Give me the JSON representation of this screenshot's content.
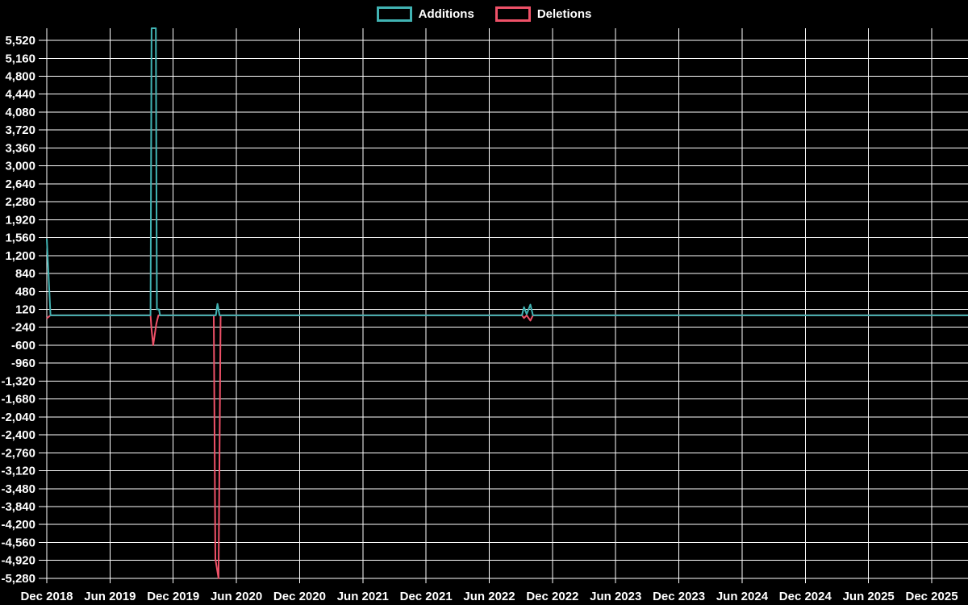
{
  "legend": {
    "items": [
      {
        "label": "Additions",
        "color": "#41b3b3"
      },
      {
        "label": "Deletions",
        "color": "#ef5168"
      }
    ]
  },
  "chart_data": {
    "type": "line",
    "title": "",
    "xlabel": "",
    "ylabel": "",
    "background": "#000000",
    "grid": true,
    "legend_position": "top-center",
    "x_axis": {
      "tick_labels": [
        "Dec 2018",
        "Jun 2019",
        "Dec 2019",
        "Jun 2020",
        "Dec 2020",
        "Jun 2021",
        "Dec 2021",
        "Jun 2022",
        "Dec 2022",
        "Jun 2023",
        "Dec 2023",
        "Jun 2024",
        "Dec 2024",
        "Jun 2025",
        "Dec 2025"
      ],
      "tick_month_offsets": [
        0,
        6,
        12,
        18,
        24,
        30,
        36,
        42,
        48,
        54,
        60,
        66,
        72,
        78,
        84
      ],
      "plot_end_month_offset": 87.5
    },
    "y_axis": {
      "tick_values": [
        5520,
        5160,
        4800,
        4440,
        4080,
        3720,
        3360,
        3000,
        2640,
        2280,
        1920,
        1560,
        1200,
        840,
        480,
        120,
        -240,
        -600,
        -960,
        -1320,
        -1680,
        -2040,
        -2400,
        -2760,
        -3120,
        -3480,
        -3840,
        -4200,
        -4560,
        -4920,
        -5280
      ],
      "tick_labels": [
        "5,520",
        "5,160",
        "4,800",
        "4,440",
        "4,080",
        "3,720",
        "3,360",
        "3,000",
        "2,640",
        "2,280",
        "1,920",
        "1,560",
        "1,200",
        "840",
        "480",
        "120",
        "-240",
        "-600",
        "-960",
        "-1,320",
        "-1,680",
        "-2,040",
        "-2,400",
        "-2,760",
        "-3,120",
        "-3,480",
        "-3,840",
        "-4,200",
        "-4,560",
        "-4,920",
        "-5,280"
      ],
      "min": -5280,
      "max": 5770,
      "step": 360
    },
    "series": [
      {
        "name": "Additions",
        "color": "#41b3b3",
        "points": [
          [
            0,
            1540
          ],
          [
            0.35,
            0
          ],
          [
            9.85,
            0
          ],
          [
            9.95,
            5770
          ],
          [
            10.35,
            5770
          ],
          [
            10.45,
            120
          ],
          [
            10.65,
            120
          ],
          [
            10.75,
            0
          ],
          [
            16.05,
            0
          ],
          [
            16.2,
            230
          ],
          [
            16.4,
            0
          ],
          [
            45.1,
            0
          ],
          [
            45.3,
            165
          ],
          [
            45.55,
            25
          ],
          [
            45.9,
            215
          ],
          [
            46.15,
            0
          ],
          [
            87.5,
            0
          ]
        ]
      },
      {
        "name": "Deletions",
        "color": "#ef5168",
        "points": [
          [
            0,
            -60
          ],
          [
            0.35,
            0
          ],
          [
            9.85,
            0
          ],
          [
            9.95,
            -290
          ],
          [
            10.1,
            -600
          ],
          [
            10.4,
            -170
          ],
          [
            10.6,
            0
          ],
          [
            15.85,
            0
          ],
          [
            16.0,
            -4890
          ],
          [
            16.3,
            -5280
          ],
          [
            16.5,
            0
          ],
          [
            45.1,
            0
          ],
          [
            45.3,
            -55
          ],
          [
            45.55,
            0
          ],
          [
            45.9,
            -105
          ],
          [
            46.15,
            0
          ],
          [
            87.5,
            0
          ]
        ]
      }
    ]
  }
}
